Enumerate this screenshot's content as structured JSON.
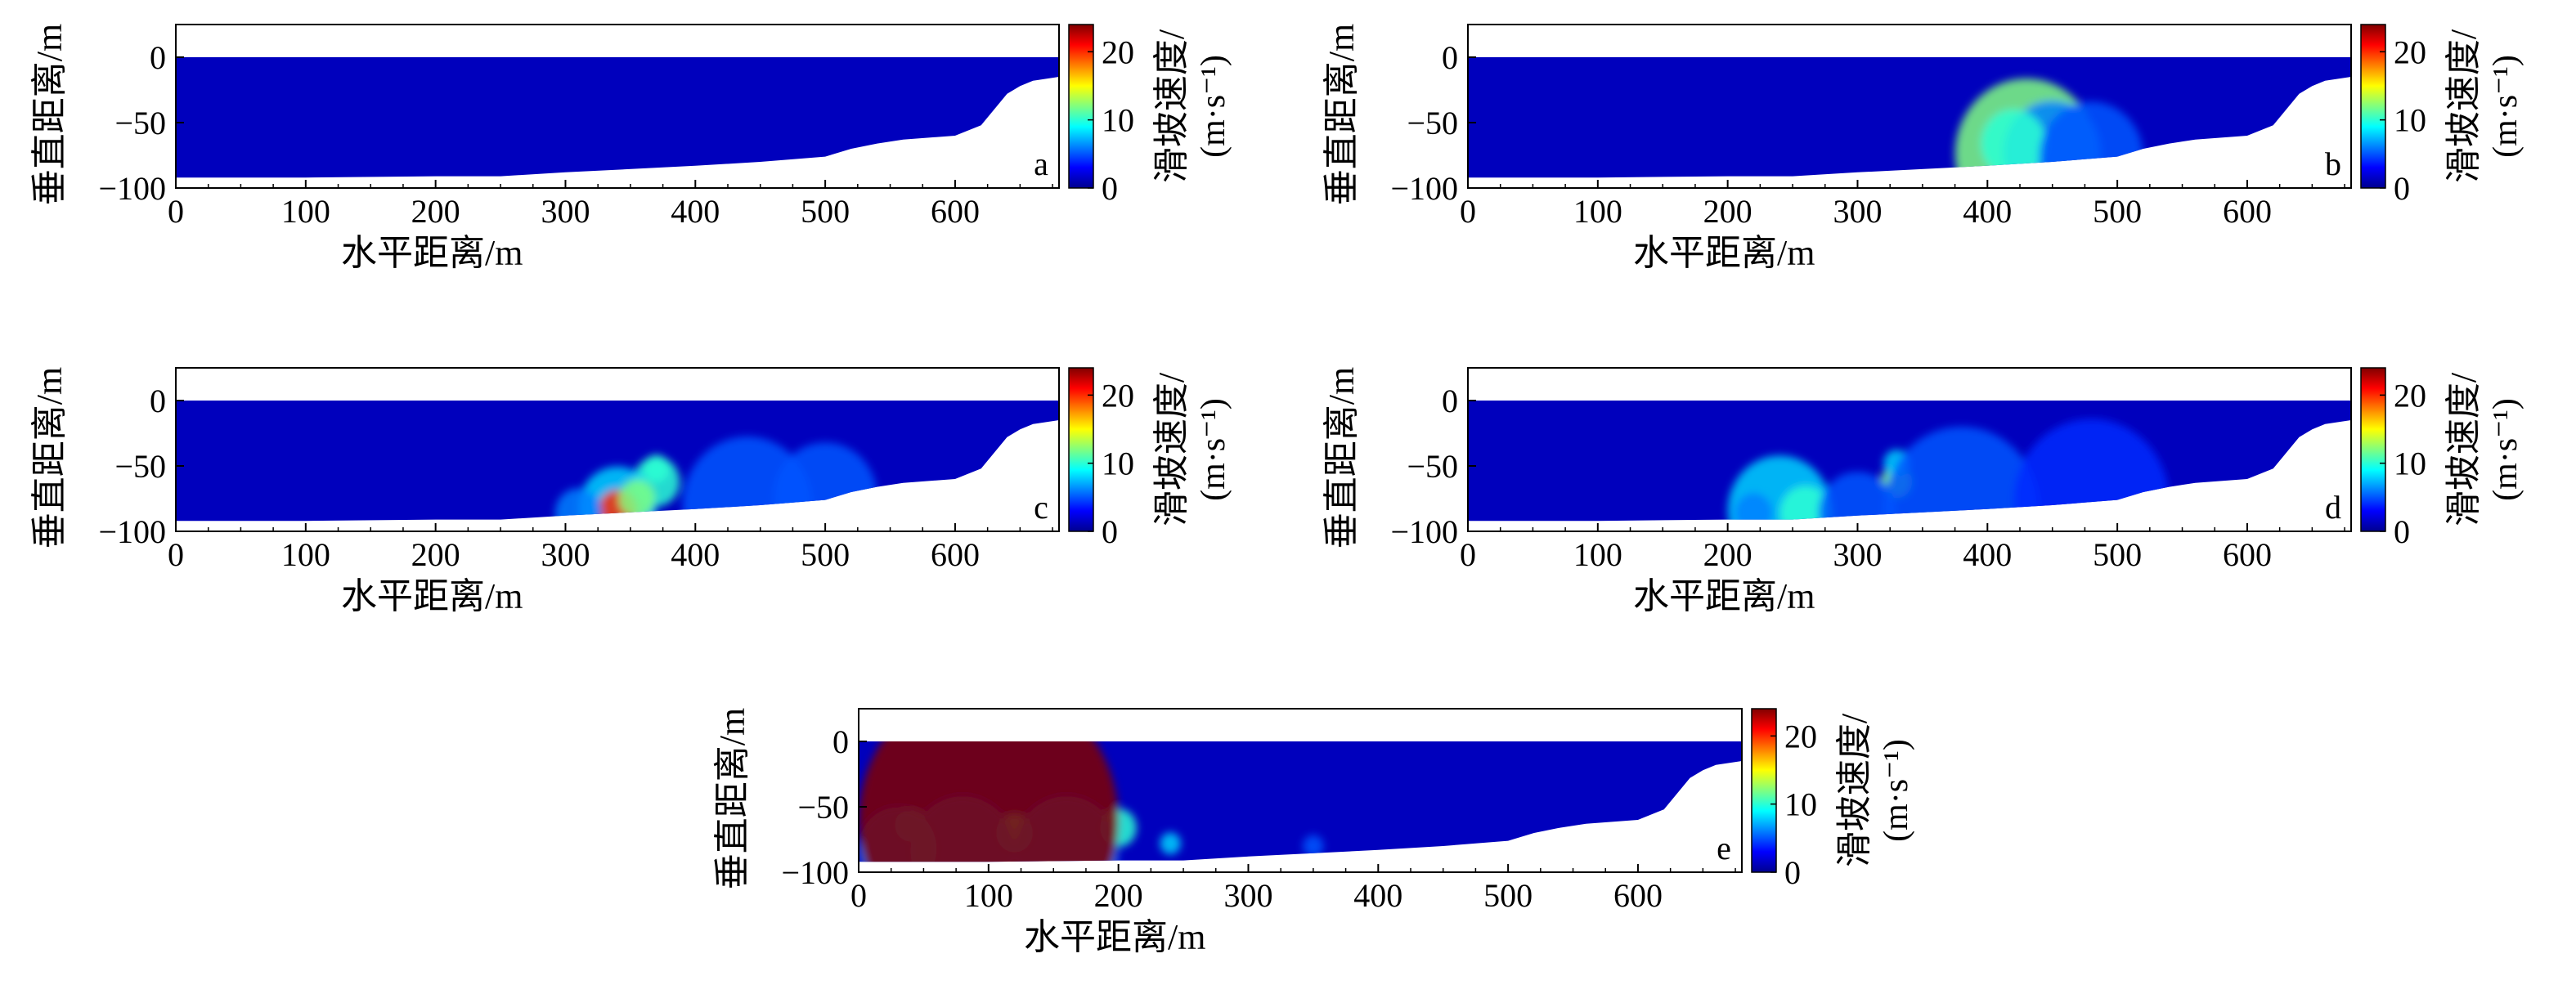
{
  "chart_data": [
    {
      "type": "heatmap",
      "panel_label": "a",
      "xlabel": "水平距离/m",
      "ylabel": "垂直距离/m",
      "xlim": [
        0,
        680
      ],
      "ylim": [
        -100,
        25
      ],
      "xticks": [
        "0",
        "100",
        "200",
        "300",
        "400",
        "500",
        "600"
      ],
      "yticks": [
        "0",
        "-50",
        "-100"
      ],
      "colorbar": {
        "label": "滑坡速度/",
        "unit": "(m·s⁻¹)",
        "range": [
          0,
          24
        ],
        "ticks": [
          "0",
          "10",
          "20"
        ]
      },
      "seabed": [
        [
          0,
          -92
        ],
        [
          100,
          -92
        ],
        [
          200,
          -91
        ],
        [
          250,
          -91
        ],
        [
          300,
          -88
        ],
        [
          400,
          -83
        ],
        [
          450,
          -80
        ],
        [
          500,
          -76
        ],
        [
          520,
          -70
        ],
        [
          540,
          -66
        ],
        [
          560,
          -63
        ],
        [
          600,
          -60
        ],
        [
          620,
          -52
        ],
        [
          630,
          -40
        ],
        [
          640,
          -28
        ],
        [
          650,
          -22
        ],
        [
          660,
          -18
        ],
        [
          680,
          -15
        ]
      ],
      "hotspots": []
    },
    {
      "type": "heatmap",
      "panel_label": "b",
      "xlabel": "水平距离/m",
      "ylabel": "垂直距离/m",
      "xlim": [
        0,
        680
      ],
      "ylim": [
        -100,
        25
      ],
      "xticks": [
        "0",
        "100",
        "200",
        "300",
        "400",
        "500",
        "600"
      ],
      "yticks": [
        "0",
        "-50",
        "-100"
      ],
      "colorbar": {
        "label": "滑坡速度/",
        "unit": "(m·s⁻¹)",
        "range": [
          0,
          24
        ],
        "ticks": [
          "0",
          "10",
          "20"
        ]
      },
      "seabed": [
        [
          0,
          -92
        ],
        [
          100,
          -92
        ],
        [
          200,
          -91
        ],
        [
          250,
          -91
        ],
        [
          300,
          -88
        ],
        [
          400,
          -83
        ],
        [
          450,
          -80
        ],
        [
          500,
          -76
        ],
        [
          520,
          -70
        ],
        [
          540,
          -66
        ],
        [
          560,
          -63
        ],
        [
          600,
          -60
        ],
        [
          620,
          -52
        ],
        [
          630,
          -40
        ],
        [
          640,
          -28
        ],
        [
          650,
          -22
        ],
        [
          660,
          -18
        ],
        [
          680,
          -15
        ]
      ],
      "hotspots": [
        [
          440,
          -72,
          20,
          20
        ],
        [
          430,
          -74,
          55,
          12
        ],
        [
          450,
          -73,
          38,
          6
        ],
        [
          420,
          -66,
          25,
          10
        ],
        [
          480,
          -76,
          40,
          5
        ]
      ]
    },
    {
      "type": "heatmap",
      "panel_label": "c",
      "xlabel": "水平距离/m",
      "ylabel": "垂直距离/m",
      "xlim": [
        0,
        680
      ],
      "ylim": [
        -100,
        25
      ],
      "xticks": [
        "0",
        "100",
        "200",
        "300",
        "400",
        "500",
        "600"
      ],
      "yticks": [
        "0",
        "-50",
        "-100"
      ],
      "colorbar": {
        "label": "滑坡速度/",
        "unit": "(m·s⁻¹)",
        "range": [
          0,
          24
        ],
        "ticks": [
          "0",
          "10",
          "20"
        ]
      },
      "seabed": [
        [
          0,
          -92
        ],
        [
          100,
          -92
        ],
        [
          200,
          -91
        ],
        [
          250,
          -91
        ],
        [
          300,
          -88
        ],
        [
          400,
          -83
        ],
        [
          450,
          -80
        ],
        [
          500,
          -76
        ],
        [
          520,
          -70
        ],
        [
          540,
          -66
        ],
        [
          560,
          -63
        ],
        [
          600,
          -60
        ],
        [
          620,
          -52
        ],
        [
          630,
          -40
        ],
        [
          640,
          -28
        ],
        [
          650,
          -22
        ],
        [
          660,
          -18
        ],
        [
          680,
          -15
        ]
      ],
      "hotspots": [
        [
          370,
          -62,
          18,
          10
        ],
        [
          370,
          -52,
          10,
          10
        ],
        [
          340,
          -82,
          30,
          8
        ],
        [
          340,
          -84,
          15,
          20
        ],
        [
          310,
          -86,
          18,
          6
        ],
        [
          355,
          -75,
          14,
          12
        ],
        [
          440,
          -80,
          50,
          5
        ],
        [
          500,
          -74,
          40,
          5
        ]
      ]
    },
    {
      "type": "heatmap",
      "panel_label": "d",
      "xlabel": "水平距离/m",
      "ylabel": "垂直距离/m",
      "xlim": [
        0,
        680
      ],
      "ylim": [
        -100,
        25
      ],
      "xticks": [
        "0",
        "100",
        "200",
        "300",
        "400",
        "500",
        "600"
      ],
      "yticks": [
        "0",
        "-50",
        "-100"
      ],
      "colorbar": {
        "label": "滑坡速度/",
        "unit": "(m·s⁻¹)",
        "range": [
          0,
          24
        ],
        "ticks": [
          "0",
          "10",
          "20"
        ]
      },
      "seabed": [
        [
          0,
          -92
        ],
        [
          100,
          -92
        ],
        [
          200,
          -91
        ],
        [
          250,
          -91
        ],
        [
          300,
          -88
        ],
        [
          400,
          -83
        ],
        [
          450,
          -80
        ],
        [
          500,
          -76
        ],
        [
          520,
          -70
        ],
        [
          540,
          -66
        ],
        [
          560,
          -63
        ],
        [
          600,
          -60
        ],
        [
          620,
          -52
        ],
        [
          630,
          -40
        ],
        [
          640,
          -28
        ],
        [
          650,
          -22
        ],
        [
          660,
          -18
        ],
        [
          680,
          -15
        ]
      ],
      "hotspots": [
        [
          330,
          -62,
          12,
          12
        ],
        [
          330,
          -48,
          10,
          8
        ],
        [
          240,
          -84,
          40,
          8
        ],
        [
          260,
          -86,
          20,
          10
        ],
        [
          220,
          -86,
          15,
          6
        ],
        [
          300,
          -86,
          30,
          5
        ],
        [
          380,
          -83,
          60,
          5
        ],
        [
          480,
          -77,
          60,
          4
        ]
      ]
    },
    {
      "type": "heatmap",
      "panel_label": "e",
      "xlabel": "水平距离/m",
      "ylabel": "垂直距离/m",
      "xlim": [
        0,
        680
      ],
      "ylim": [
        -100,
        25
      ],
      "xticks": [
        "0",
        "100",
        "200",
        "300",
        "400",
        "500",
        "600"
      ],
      "yticks": [
        "0",
        "-50",
        "-100"
      ],
      "colorbar": {
        "label": "滑坡速度/",
        "unit": "(m·s⁻¹)",
        "range": [
          0,
          24
        ],
        "ticks": [
          "0",
          "10",
          "20"
        ]
      },
      "seabed": [
        [
          0,
          -92
        ],
        [
          100,
          -92
        ],
        [
          200,
          -91
        ],
        [
          250,
          -91
        ],
        [
          300,
          -88
        ],
        [
          400,
          -83
        ],
        [
          450,
          -80
        ],
        [
          500,
          -76
        ],
        [
          520,
          -70
        ],
        [
          540,
          -66
        ],
        [
          560,
          -63
        ],
        [
          600,
          -60
        ],
        [
          620,
          -52
        ],
        [
          630,
          -40
        ],
        [
          640,
          -28
        ],
        [
          650,
          -22
        ],
        [
          660,
          -18
        ],
        [
          680,
          -15
        ]
      ],
      "hotspots": [
        [
          120,
          -70,
          14,
          10
        ],
        [
          200,
          -66,
          14,
          10
        ],
        [
          240,
          -78,
          8,
          8
        ],
        [
          40,
          -64,
          12,
          10
        ],
        [
          30,
          -82,
          30,
          6
        ],
        [
          80,
          -84,
          40,
          6
        ],
        [
          160,
          -84,
          40,
          6
        ],
        [
          350,
          -80,
          8,
          5
        ],
        [
          100,
          -60,
          100,
          30
        ]
      ]
    }
  ]
}
